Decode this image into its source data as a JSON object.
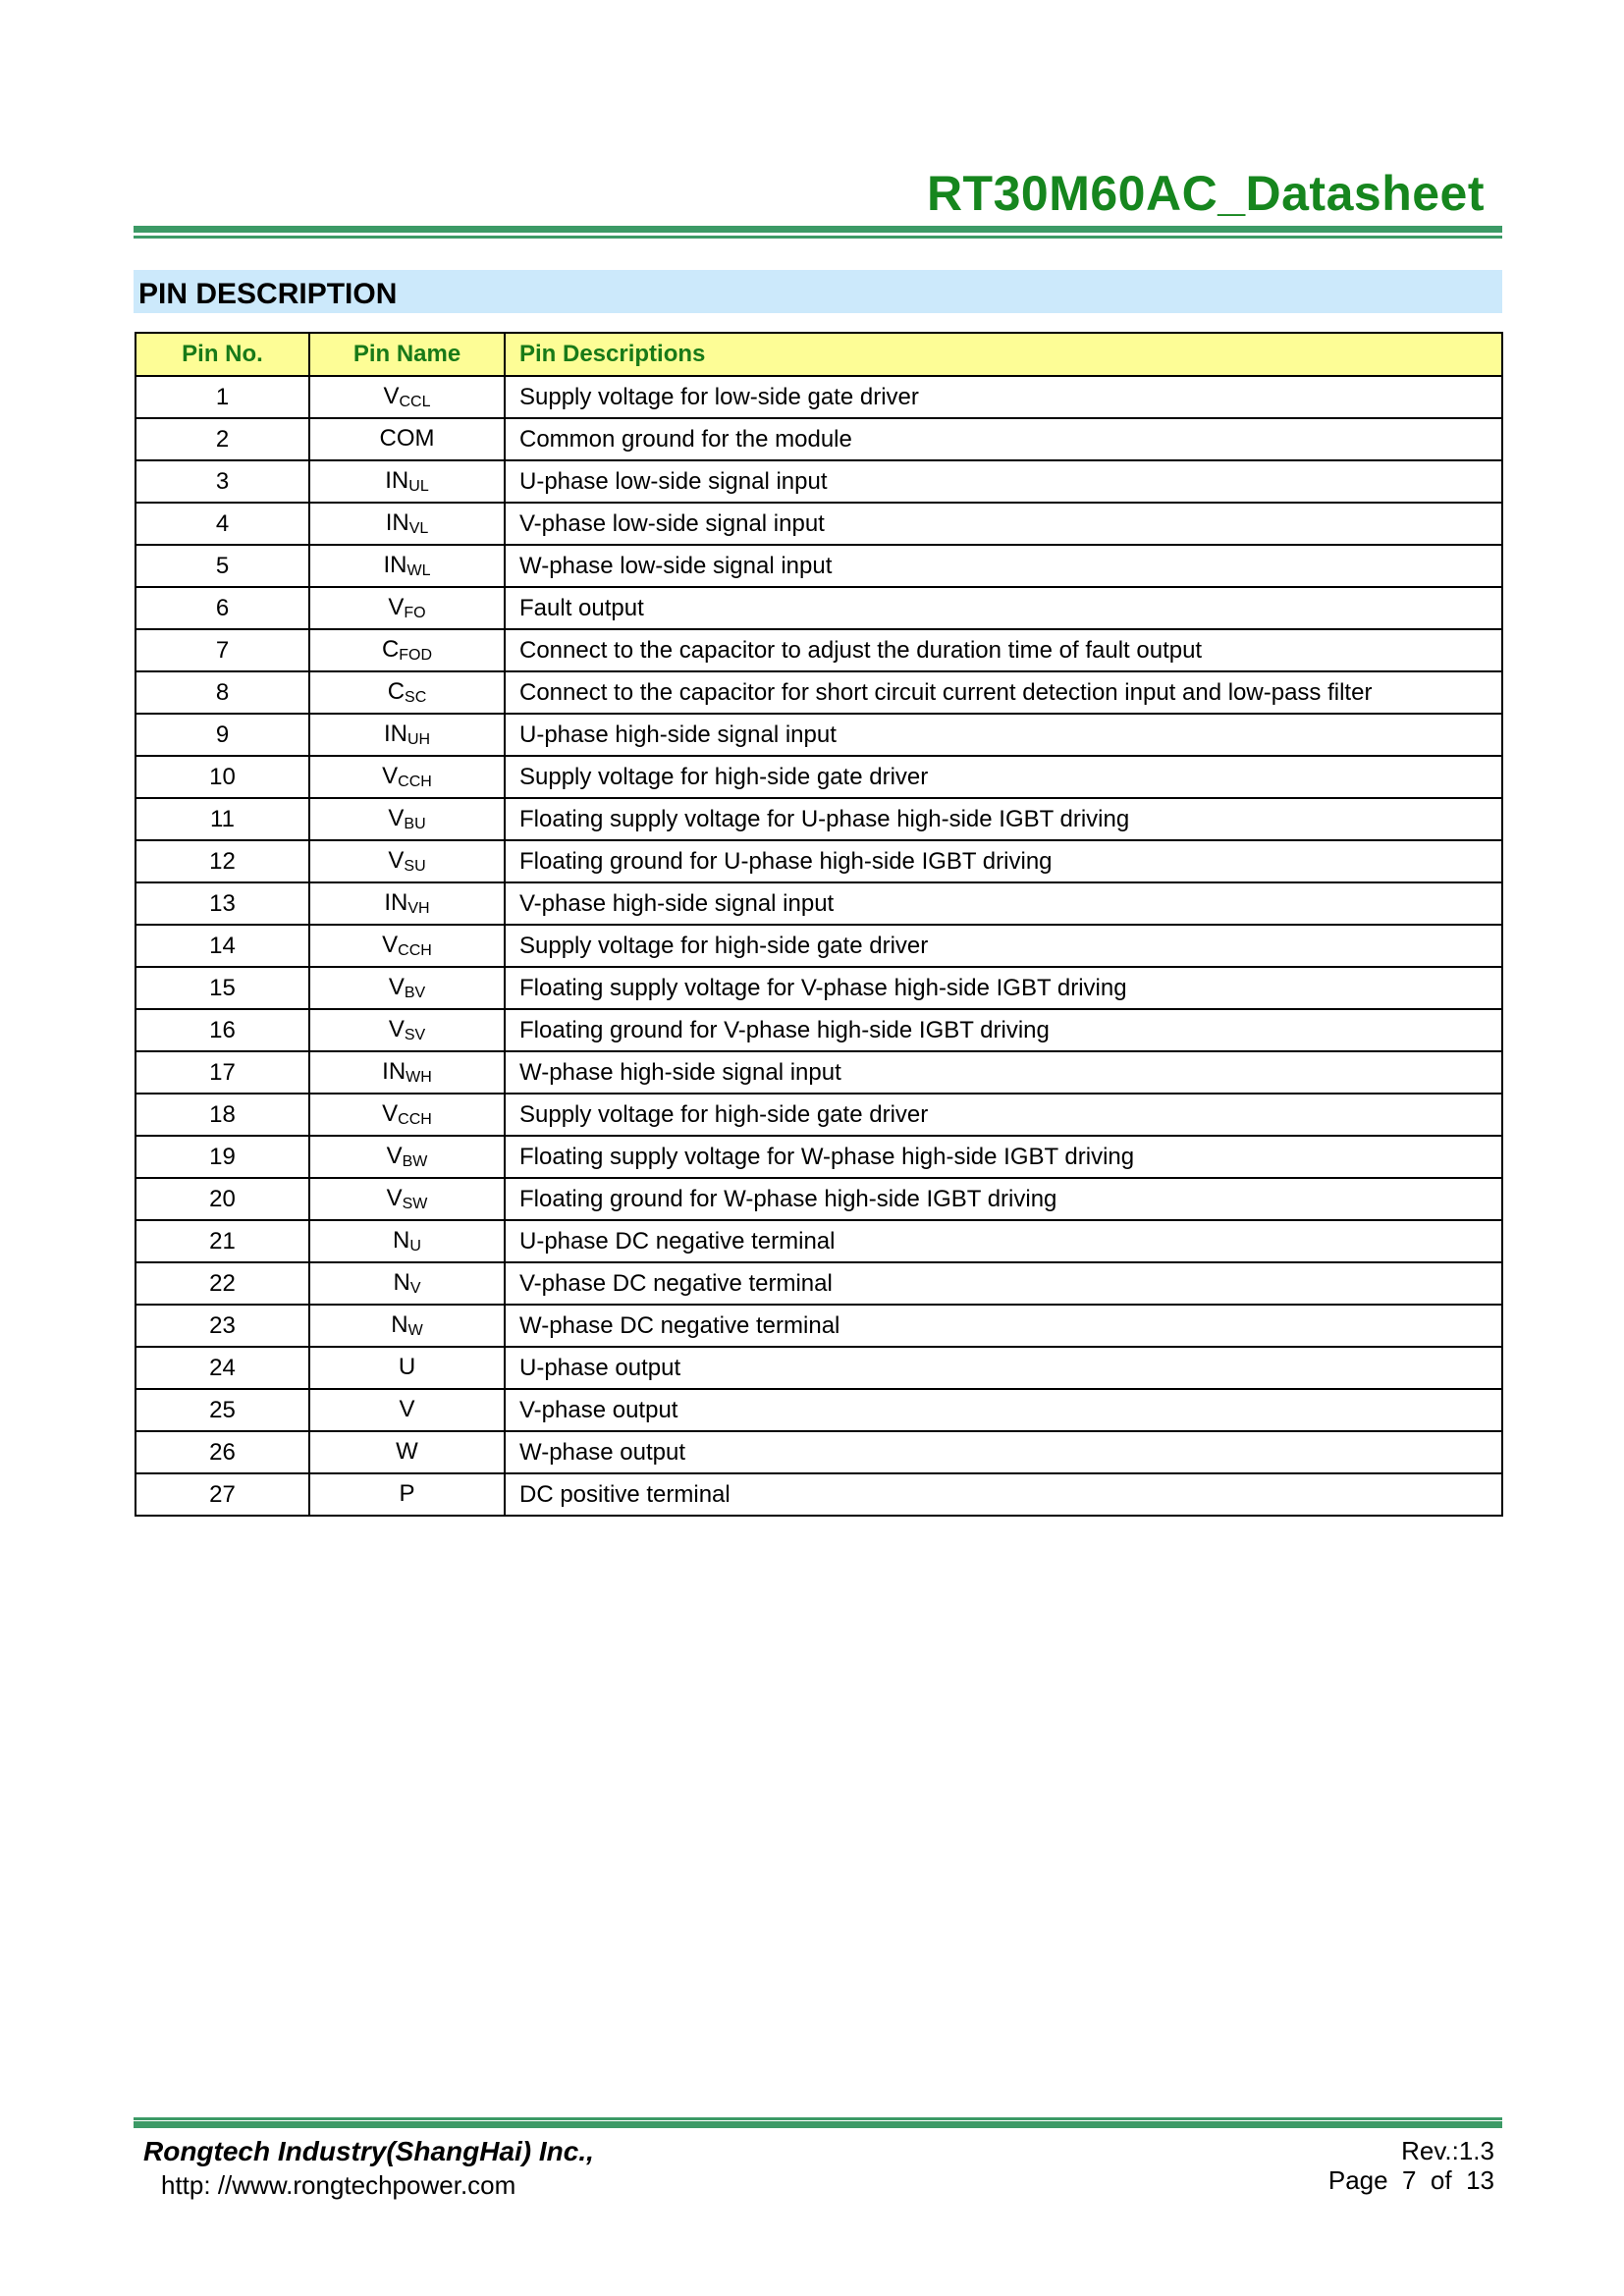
{
  "header": {
    "title": "RT30M60AC_Datasheet"
  },
  "section_title": "PIN DESCRIPTION",
  "table": {
    "columns": [
      "Pin No.",
      "Pin Name",
      "Pin Descriptions"
    ],
    "rows": [
      {
        "no": "1",
        "name": "V",
        "sub": "CCL",
        "desc": "Supply voltage for low-side gate driver"
      },
      {
        "no": "2",
        "name": "COM",
        "sub": "",
        "desc": "Common ground for the module"
      },
      {
        "no": "3",
        "name": "IN",
        "sub": "UL",
        "desc": "U-phase low-side signal input"
      },
      {
        "no": "4",
        "name": "IN",
        "sub": "VL",
        "desc": "V-phase low-side signal input"
      },
      {
        "no": "5",
        "name": "IN",
        "sub": "WL",
        "desc": "W-phase low-side signal input"
      },
      {
        "no": "6",
        "name": "V",
        "sub": "FO",
        "desc": "Fault output"
      },
      {
        "no": "7",
        "name": "C",
        "sub": "FOD",
        "desc": "Connect to the capacitor to adjust the duration time of fault output"
      },
      {
        "no": "8",
        "name": "C",
        "sub": "SC",
        "desc": "Connect to the capacitor for short circuit current detection input and low-pass filter"
      },
      {
        "no": "9",
        "name": "IN",
        "sub": "UH",
        "desc": "U-phase high-side signal input"
      },
      {
        "no": "10",
        "name": "V",
        "sub": "CCH",
        "desc": "Supply voltage for high-side gate driver"
      },
      {
        "no": "11",
        "name": "V",
        "sub": "BU",
        "desc": "Floating supply voltage for U-phase high-side IGBT driving"
      },
      {
        "no": "12",
        "name": "V",
        "sub": "SU",
        "desc": "Floating ground for U-phase high-side IGBT driving"
      },
      {
        "no": "13",
        "name": "IN",
        "sub": "VH",
        "desc": "V-phase high-side signal input"
      },
      {
        "no": "14",
        "name": "V",
        "sub": "CCH",
        "desc": "Supply voltage for high-side gate driver"
      },
      {
        "no": "15",
        "name": "V",
        "sub": "BV",
        "desc": "Floating supply voltage for V-phase high-side IGBT driving"
      },
      {
        "no": "16",
        "name": "V",
        "sub": "SV",
        "desc": "Floating ground for V-phase high-side IGBT driving"
      },
      {
        "no": "17",
        "name": "IN",
        "sub": "WH",
        "desc": "W-phase high-side signal input"
      },
      {
        "no": "18",
        "name": "V",
        "sub": "CCH",
        "desc": "Supply voltage for high-side gate driver"
      },
      {
        "no": "19",
        "name": "V",
        "sub": "BW",
        "desc": "Floating supply voltage for W-phase high-side IGBT driving"
      },
      {
        "no": "20",
        "name": "V",
        "sub": "SW",
        "desc": "Floating ground for W-phase high-side IGBT driving"
      },
      {
        "no": "21",
        "name": "N",
        "sub": "U",
        "desc": "U-phase DC negative terminal"
      },
      {
        "no": "22",
        "name": "N",
        "sub": "V",
        "desc": "V-phase DC negative terminal"
      },
      {
        "no": "23",
        "name": "N",
        "sub": "W",
        "desc": "W-phase DC negative terminal"
      },
      {
        "no": "24",
        "name": "U",
        "sub": "",
        "desc": "U-phase output"
      },
      {
        "no": "25",
        "name": "V",
        "sub": "",
        "desc": "V-phase output"
      },
      {
        "no": "26",
        "name": "W",
        "sub": "",
        "desc": "W-phase output"
      },
      {
        "no": "27",
        "name": "P",
        "sub": "",
        "desc": "DC positive terminal"
      }
    ]
  },
  "footer": {
    "company": "Rongtech Industry(ShangHai) Inc.,",
    "url": "http: //www.rongtechpower.com",
    "revision": "Rev.:1.3",
    "page": "Page  7  of  13"
  },
  "colors": {
    "title": "#16861e",
    "rule": "#3c9a66",
    "section_bg": "#cce9fb",
    "table_header_bg": "#fdfd96"
  }
}
